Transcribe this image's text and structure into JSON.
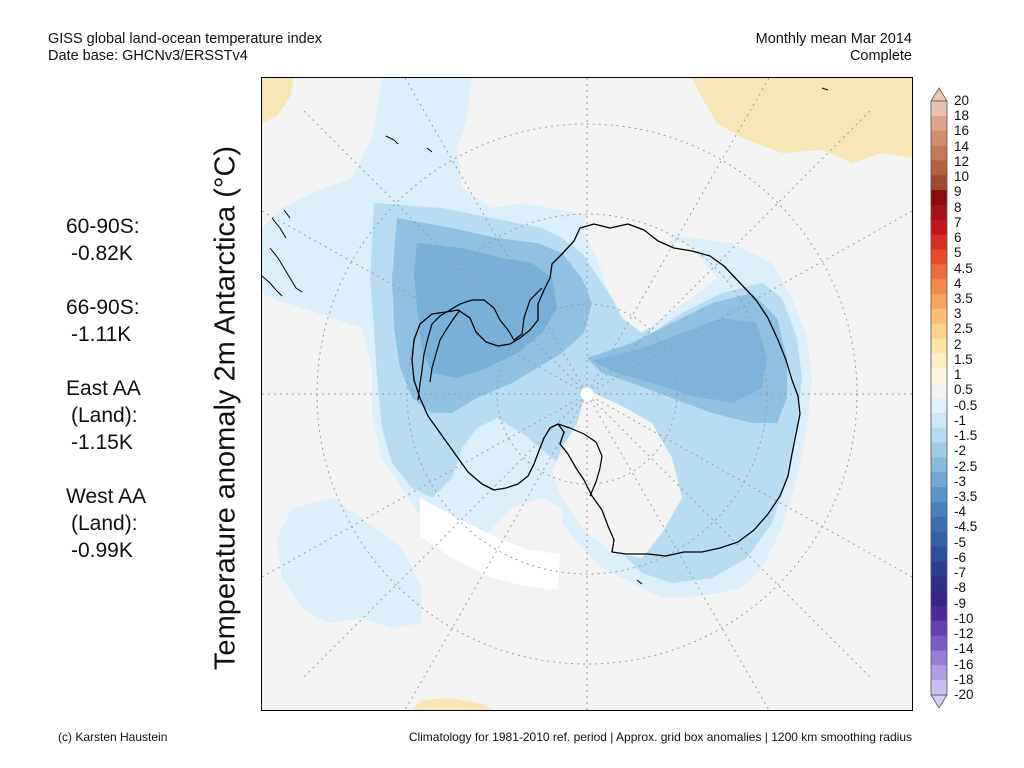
{
  "header": {
    "title": "GISS global land-ocean temperature index",
    "database": "Date base: GHCNv3/ERSSTv4",
    "period": "Monthly mean Mar 2014",
    "status": "Complete"
  },
  "axis_label": "Temperature anomaly 2m Antarctica (°C)",
  "stats": [
    {
      "lines": [
        "60-90S:",
        "-0.82K"
      ]
    },
    {
      "lines": [
        "66-90S:",
        "-1.11K"
      ]
    },
    {
      "lines": [
        "East AA",
        "(Land):",
        "-1.15K"
      ]
    },
    {
      "lines": [
        "West AA",
        "(Land):",
        "-0.99K"
      ]
    }
  ],
  "colorbar": {
    "labels": [
      "20",
      "18",
      "16",
      "14",
      "12",
      "10",
      "9",
      "8",
      "7",
      "6",
      "5",
      "4.5",
      "4",
      "3.5",
      "3",
      "2.5",
      "2",
      "1.5",
      "1",
      "0.5",
      "-0.5",
      "-1",
      "-1.5",
      "-2",
      "-2.5",
      "-3",
      "-3.5",
      "-4",
      "-4.5",
      "-5",
      "-6",
      "-7",
      "-8",
      "-9",
      "-10",
      "-12",
      "-14",
      "-16",
      "-18",
      "-20"
    ],
    "colors": [
      "#e8c2b0",
      "#dba58a",
      "#cf8e6e",
      "#c27a56",
      "#b3623e",
      "#9e4a2c",
      "#8b0a0a",
      "#a50f15",
      "#c0171c",
      "#d7301f",
      "#e84a2a",
      "#ef6a3a",
      "#f4894a",
      "#f8a45a",
      "#fbbe72",
      "#fcd28e",
      "#fde3aa",
      "#fdeec4",
      "#fff7dd",
      "#f3f3f3",
      "#e3f1fb",
      "#cde6f7",
      "#b6daf0",
      "#9fcbe6",
      "#87badc",
      "#70a8d2",
      "#5a95c7",
      "#4782bb",
      "#3a6fb0",
      "#3360a6",
      "#2e4f9a",
      "#2b3f8e",
      "#2c2f84",
      "#35238a",
      "#4d2a9c",
      "#6540b0",
      "#7c5cc4",
      "#977dd4",
      "#b09de0",
      "#c9c0ec"
    ],
    "top_arrow_color": "#f2c6b4",
    "bottom_arrow_color": "#d8d0f4"
  },
  "footer": {
    "credit": "(c) Karsten Haustein",
    "note": "Climatology for 1981-2010 ref. period | Approx. grid box anomalies | 1200 km smoothing radius"
  }
}
